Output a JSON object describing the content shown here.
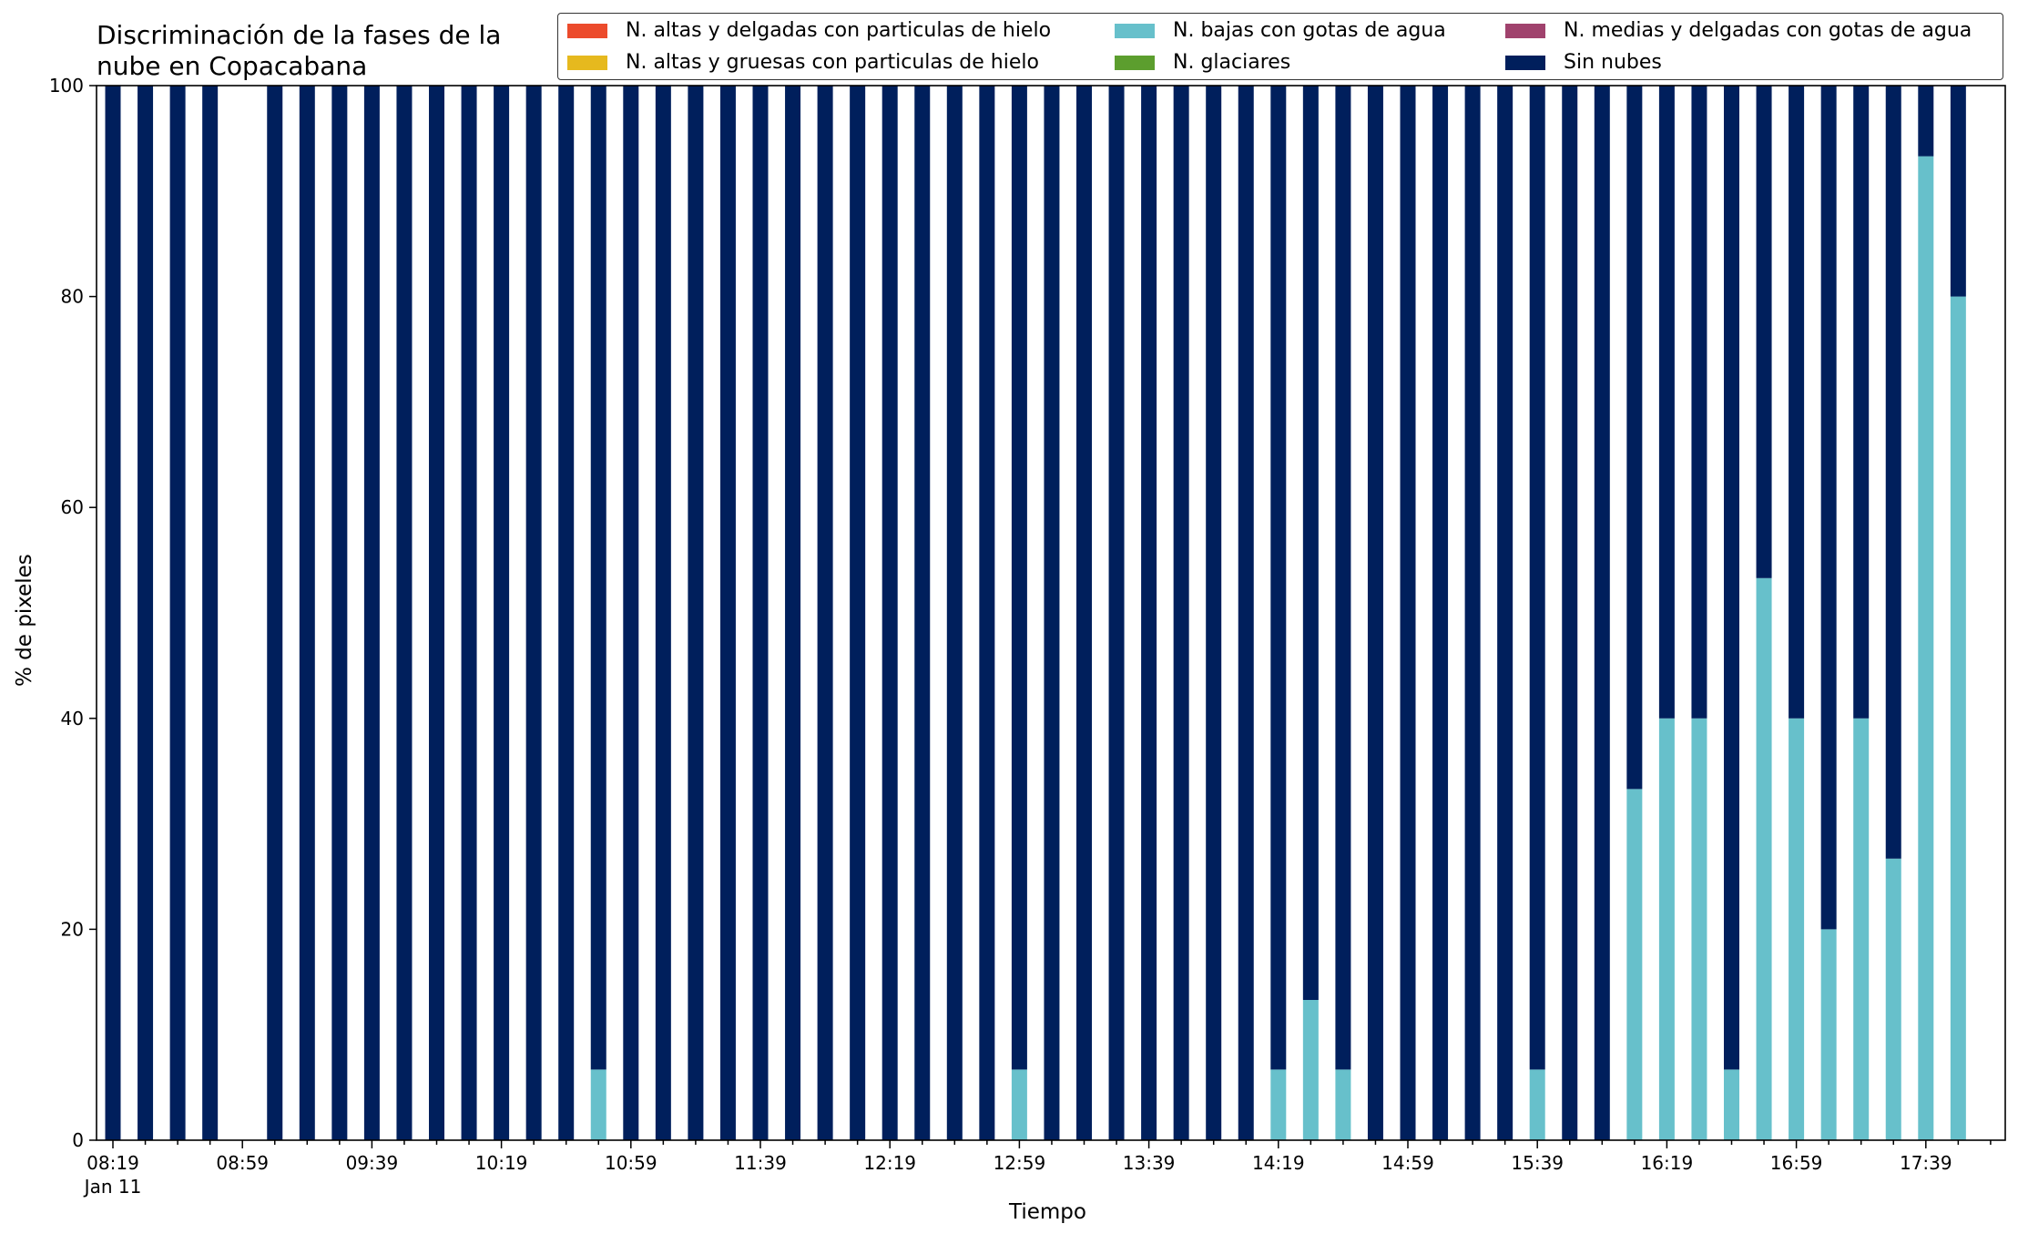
{
  "chart_data": {
    "type": "bar",
    "stacked": true,
    "title_lines": [
      "Discriminación de la fases de la",
      "nube en Copacabana"
    ],
    "xlabel": "Tiempo",
    "ylabel": "% de pixeles",
    "ylim": [
      0,
      100
    ],
    "yticks": [
      0,
      20,
      40,
      60,
      80,
      100
    ],
    "legend_placement": "top-right",
    "x_tick_labels": [
      "08:19",
      "08:59",
      "09:39",
      "10:19",
      "10:59",
      "11:39",
      "12:19",
      "12:59",
      "13:39",
      "14:19",
      "14:59",
      "15:39",
      "16:19",
      "16:59",
      "17:39"
    ],
    "x_date_label": "Jan 11",
    "interval_minutes": 10,
    "categories": [
      "08:19",
      "08:29",
      "08:39",
      "08:49",
      "08:59",
      "09:09",
      "09:19",
      "09:29",
      "09:39",
      "09:49",
      "09:59",
      "10:09",
      "10:19",
      "10:29",
      "10:39",
      "10:49",
      "10:59",
      "11:09",
      "11:19",
      "11:29",
      "11:39",
      "11:49",
      "11:59",
      "12:09",
      "12:19",
      "12:29",
      "12:39",
      "12:49",
      "12:59",
      "13:09",
      "13:19",
      "13:29",
      "13:39",
      "13:49",
      "13:59",
      "14:09",
      "14:19",
      "14:29",
      "14:39",
      "14:49",
      "14:59",
      "15:09",
      "15:19",
      "15:29",
      "15:39",
      "15:49",
      "15:59",
      "16:09",
      "16:19",
      "16:29",
      "16:39",
      "16:49",
      "16:59",
      "17:09",
      "17:19",
      "17:29",
      "17:39",
      "17:49"
    ],
    "series": [
      {
        "name": "N. altas y delgadas con particulas de hielo",
        "color": "#ec4b2c",
        "values": [
          0,
          0,
          0,
          0,
          null,
          0,
          0,
          0,
          0,
          0,
          0,
          0,
          0,
          0,
          0,
          0,
          0,
          0,
          0,
          0,
          0,
          0,
          0,
          0,
          0,
          0,
          0,
          0,
          0,
          0,
          0,
          0,
          0,
          0,
          0,
          0,
          0,
          0,
          0,
          0,
          0,
          0,
          0,
          0,
          0,
          0,
          0,
          0,
          0,
          0,
          0,
          0,
          0,
          0,
          0,
          0,
          0,
          0
        ]
      },
      {
        "name": "N. altas y gruesas con particulas de hielo",
        "color": "#e6b91e",
        "values": [
          0,
          0,
          0,
          0,
          null,
          0,
          0,
          0,
          0,
          0,
          0,
          0,
          0,
          0,
          0,
          0,
          0,
          0,
          0,
          0,
          0,
          0,
          0,
          0,
          0,
          0,
          0,
          0,
          0,
          0,
          0,
          0,
          0,
          0,
          0,
          0,
          0,
          0,
          0,
          0,
          0,
          0,
          0,
          0,
          0,
          0,
          0,
          0,
          0,
          0,
          0,
          0,
          0,
          0,
          0,
          0,
          0,
          0
        ]
      },
      {
        "name": "N. bajas con gotas de agua",
        "color": "#67c0cb",
        "values": [
          0,
          0,
          0,
          0,
          null,
          0,
          0,
          0,
          0,
          0,
          0,
          0,
          0,
          0,
          0,
          6.7,
          0,
          0,
          0,
          0,
          0,
          0,
          0,
          0,
          0,
          0,
          0,
          0,
          6.7,
          0,
          0,
          0,
          0,
          0,
          0,
          0,
          6.7,
          13.3,
          6.7,
          0,
          0,
          0,
          0,
          0,
          6.7,
          0,
          0,
          33.3,
          40,
          40,
          6.7,
          53.3,
          40,
          20,
          40,
          26.7,
          93.3,
          80
        ]
      },
      {
        "name": "N. glaciares",
        "color": "#5c9e2e",
        "values": [
          0,
          0,
          0,
          0,
          null,
          0,
          0,
          0,
          0,
          0,
          0,
          0,
          0,
          0,
          0,
          0,
          0,
          0,
          0,
          0,
          0,
          0,
          0,
          0,
          0,
          0,
          0,
          0,
          0,
          0,
          0,
          0,
          0,
          0,
          0,
          0,
          0,
          0,
          0,
          0,
          0,
          0,
          0,
          0,
          0,
          0,
          0,
          0,
          0,
          0,
          0,
          0,
          0,
          0,
          0,
          0,
          0,
          0
        ]
      },
      {
        "name": "N. medias y delgadas con gotas de agua",
        "color": "#a0426d",
        "values": [
          0,
          0,
          0,
          0,
          null,
          0,
          0,
          0,
          0,
          0,
          0,
          0,
          0,
          0,
          0,
          0,
          0,
          0,
          0,
          0,
          0,
          0,
          0,
          0,
          0,
          0,
          0,
          0,
          0,
          0,
          0,
          0,
          0,
          0,
          0,
          0,
          0,
          0,
          0,
          0,
          0,
          0,
          0,
          0,
          0,
          0,
          0,
          0,
          0,
          0,
          0,
          0,
          0,
          0,
          0,
          0,
          0,
          0
        ]
      },
      {
        "name": "Sin nubes",
        "color": "#001f5c",
        "values": [
          100,
          100,
          100,
          100,
          null,
          100,
          100,
          100,
          100,
          100,
          100,
          100,
          100,
          100,
          100,
          93.3,
          100,
          100,
          100,
          100,
          100,
          100,
          100,
          100,
          100,
          100,
          100,
          100,
          93.3,
          100,
          100,
          100,
          100,
          100,
          100,
          100,
          93.3,
          86.7,
          93.3,
          100,
          100,
          100,
          100,
          100,
          93.3,
          100,
          100,
          66.7,
          60,
          60,
          93.3,
          46.7,
          60,
          80,
          60,
          73.3,
          6.7,
          20
        ]
      }
    ],
    "grid": false
  }
}
